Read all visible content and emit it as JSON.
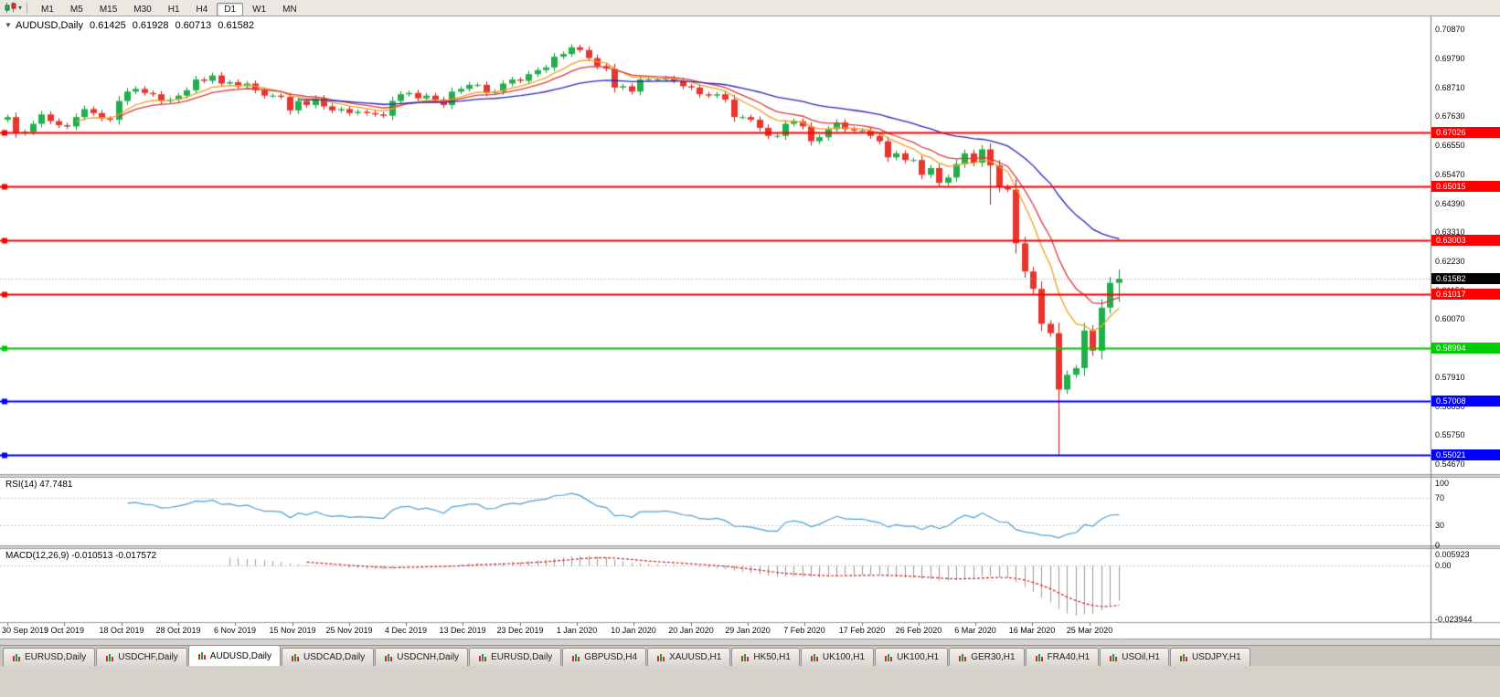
{
  "toolbar": {
    "timeframes": [
      "M1",
      "M5",
      "M15",
      "M30",
      "H1",
      "H4",
      "D1",
      "W1",
      "MN"
    ],
    "active_timeframe": "D1"
  },
  "chart": {
    "collapse_icon": "▼",
    "title": "AUDUSD,Daily",
    "open": "0.61425",
    "high": "0.61928",
    "low": "0.60713",
    "close": "0.61582"
  },
  "indicators": {
    "rsi": {
      "label": "RSI(14) 47.7481"
    },
    "macd": {
      "label": "MACD(12,26,9) -0.010513 -0.017572"
    }
  },
  "price_axis_labels": [
    "0.70870",
    "0.69790",
    "0.68710",
    "0.67630",
    "0.66550",
    "0.65470",
    "0.64390",
    "0.63310",
    "0.62230",
    "0.61150",
    "0.60070",
    "0.58990",
    "0.57910",
    "0.56830",
    "0.55750",
    "0.54670"
  ],
  "rsi_axis_labels": [
    [
      "100",
      100
    ],
    [
      "70",
      70
    ],
    [
      "30",
      30
    ],
    [
      "0",
      0
    ]
  ],
  "macd_axis_labels": [
    [
      "0.005923",
      0.005923
    ],
    [
      "0.00",
      0
    ],
    [
      "-0.023944",
      -0.023944
    ]
  ],
  "dates": [
    "30 Sep 2019",
    "9 Oct 2019",
    "18 Oct 2019",
    "28 Oct 2019",
    "6 Nov 2019",
    "15 Nov 2019",
    "25 Nov 2019",
    "4 Dec 2019",
    "13 Dec 2019",
    "23 Dec 2019",
    "1 Jan 2020",
    "10 Jan 2020",
    "20 Jan 2020",
    "29 Jan 2020",
    "7 Feb 2020",
    "17 Feb 2020",
    "26 Feb 2020",
    "6 Mar 2020",
    "16 Mar 2020",
    "25 Mar 2020"
  ],
  "tabs": [
    {
      "label": "EURUSD,Daily",
      "active": false
    },
    {
      "label": "USDCHF,Daily",
      "active": false
    },
    {
      "label": "AUDUSD,Daily",
      "active": true
    },
    {
      "label": "USDCAD,Daily",
      "active": false
    },
    {
      "label": "USDCNH,Daily",
      "active": false
    },
    {
      "label": "EURUSD,Daily",
      "active": false
    },
    {
      "label": "GBPUSD,H4",
      "active": false
    },
    {
      "label": "XAUUSD,H1",
      "active": false
    },
    {
      "label": "HK50,H1",
      "active": false
    },
    {
      "label": "UK100,H1",
      "active": false
    },
    {
      "label": "UK100,H1",
      "active": false
    },
    {
      "label": "GER30,H1",
      "active": false
    },
    {
      "label": "FRA40,H1",
      "active": false
    },
    {
      "label": "USOil,H1",
      "active": false
    },
    {
      "label": "USDJPY,H1",
      "active": false
    }
  ],
  "chart_data": {
    "type": "candlestick",
    "symbol": "AUDUSD",
    "period": "Daily",
    "last_ohlc": {
      "open": 0.61425,
      "high": 0.61928,
      "low": 0.60713,
      "close": 0.61582
    },
    "ylim": [
      0.543,
      0.7135
    ],
    "closes": [
      0.676,
      0.67,
      0.6705,
      0.6735,
      0.677,
      0.6745,
      0.673,
      0.6725,
      0.676,
      0.679,
      0.6775,
      0.6755,
      0.675,
      0.682,
      0.6855,
      0.6865,
      0.685,
      0.6845,
      0.682,
      0.6825,
      0.684,
      0.686,
      0.69,
      0.6895,
      0.6915,
      0.6885,
      0.689,
      0.6875,
      0.6885,
      0.686,
      0.684,
      0.684,
      0.6835,
      0.6785,
      0.682,
      0.6805,
      0.683,
      0.68,
      0.6785,
      0.679,
      0.6775,
      0.678,
      0.6775,
      0.677,
      0.6765,
      0.682,
      0.6845,
      0.685,
      0.683,
      0.684,
      0.6825,
      0.6805,
      0.6855,
      0.6865,
      0.688,
      0.688,
      0.685,
      0.6855,
      0.6885,
      0.69,
      0.6895,
      0.692,
      0.6935,
      0.6945,
      0.6985,
      0.6995,
      0.702,
      0.701,
      0.698,
      0.695,
      0.694,
      0.687,
      0.6875,
      0.6855,
      0.69,
      0.69,
      0.69,
      0.6905,
      0.6895,
      0.6875,
      0.687,
      0.6845,
      0.684,
      0.6845,
      0.6825,
      0.676,
      0.676,
      0.675,
      0.672,
      0.669,
      0.669,
      0.6735,
      0.6745,
      0.6725,
      0.667,
      0.6685,
      0.6715,
      0.674,
      0.6715,
      0.671,
      0.671,
      0.669,
      0.667,
      0.661,
      0.6625,
      0.66,
      0.66,
      0.6545,
      0.657,
      0.6515,
      0.6535,
      0.6585,
      0.6625,
      0.659,
      0.664,
      0.658,
      0.65,
      0.649,
      0.629,
      0.6185,
      0.612,
      0.599,
      0.5955,
      0.5745,
      0.58,
      0.5825,
      0.5965,
      0.589,
      0.605,
      0.61425,
      0.61582
    ],
    "special_candles": {
      "0": {
        "open": 0.675
      },
      "115": {
        "high": 0.6662,
        "low": 0.6434
      },
      "123": {
        "low": 0.5502
      },
      "130": {
        "high": 0.61928,
        "low": 0.60713
      }
    },
    "up_color": "#21b14c",
    "down_color": "#e8352e",
    "moving_averages": [
      {
        "name": "fast",
        "type": "ema",
        "period": 8,
        "color": "#f0a125"
      },
      {
        "name": "mid",
        "type": "ema",
        "period": 13,
        "color": "#e03a3a"
      },
      {
        "name": "slow",
        "type": "ema",
        "period": 34,
        "color": "#2828bc"
      }
    ],
    "levels": [
      {
        "price": 0.67026,
        "label": "0.67026",
        "color": "#ff0000"
      },
      {
        "price": 0.65015,
        "label": "0.65015",
        "color": "#ff0000"
      },
      {
        "price": 0.63003,
        "label": "0.63003",
        "color": "#ff0000"
      },
      {
        "price": 0.61017,
        "label": "0.61017",
        "color": "#ff0000"
      },
      {
        "price": 0.58994,
        "label": "0.58994",
        "color": "#00cc00"
      },
      {
        "price": 0.57008,
        "label": "0.57008",
        "color": "#0000ff"
      },
      {
        "price": 0.55021,
        "label": "0.55021",
        "color": "#0000ff"
      }
    ],
    "current_price": {
      "value": 0.61582,
      "label": "0.61582",
      "badge_color": "#000000"
    },
    "rsi": {
      "period": 14,
      "current": 47.7481,
      "levels": [
        70,
        30
      ],
      "range": [
        0,
        100
      ],
      "color": "#4f9fd8"
    },
    "macd": {
      "fast": 12,
      "slow": 26,
      "signal": 9,
      "current": -0.010513,
      "current_signal": -0.017572,
      "range": [
        -0.023944,
        0.005923
      ],
      "histogram_color": "#9a9a9a",
      "signal_color": "#cf2020"
    }
  }
}
